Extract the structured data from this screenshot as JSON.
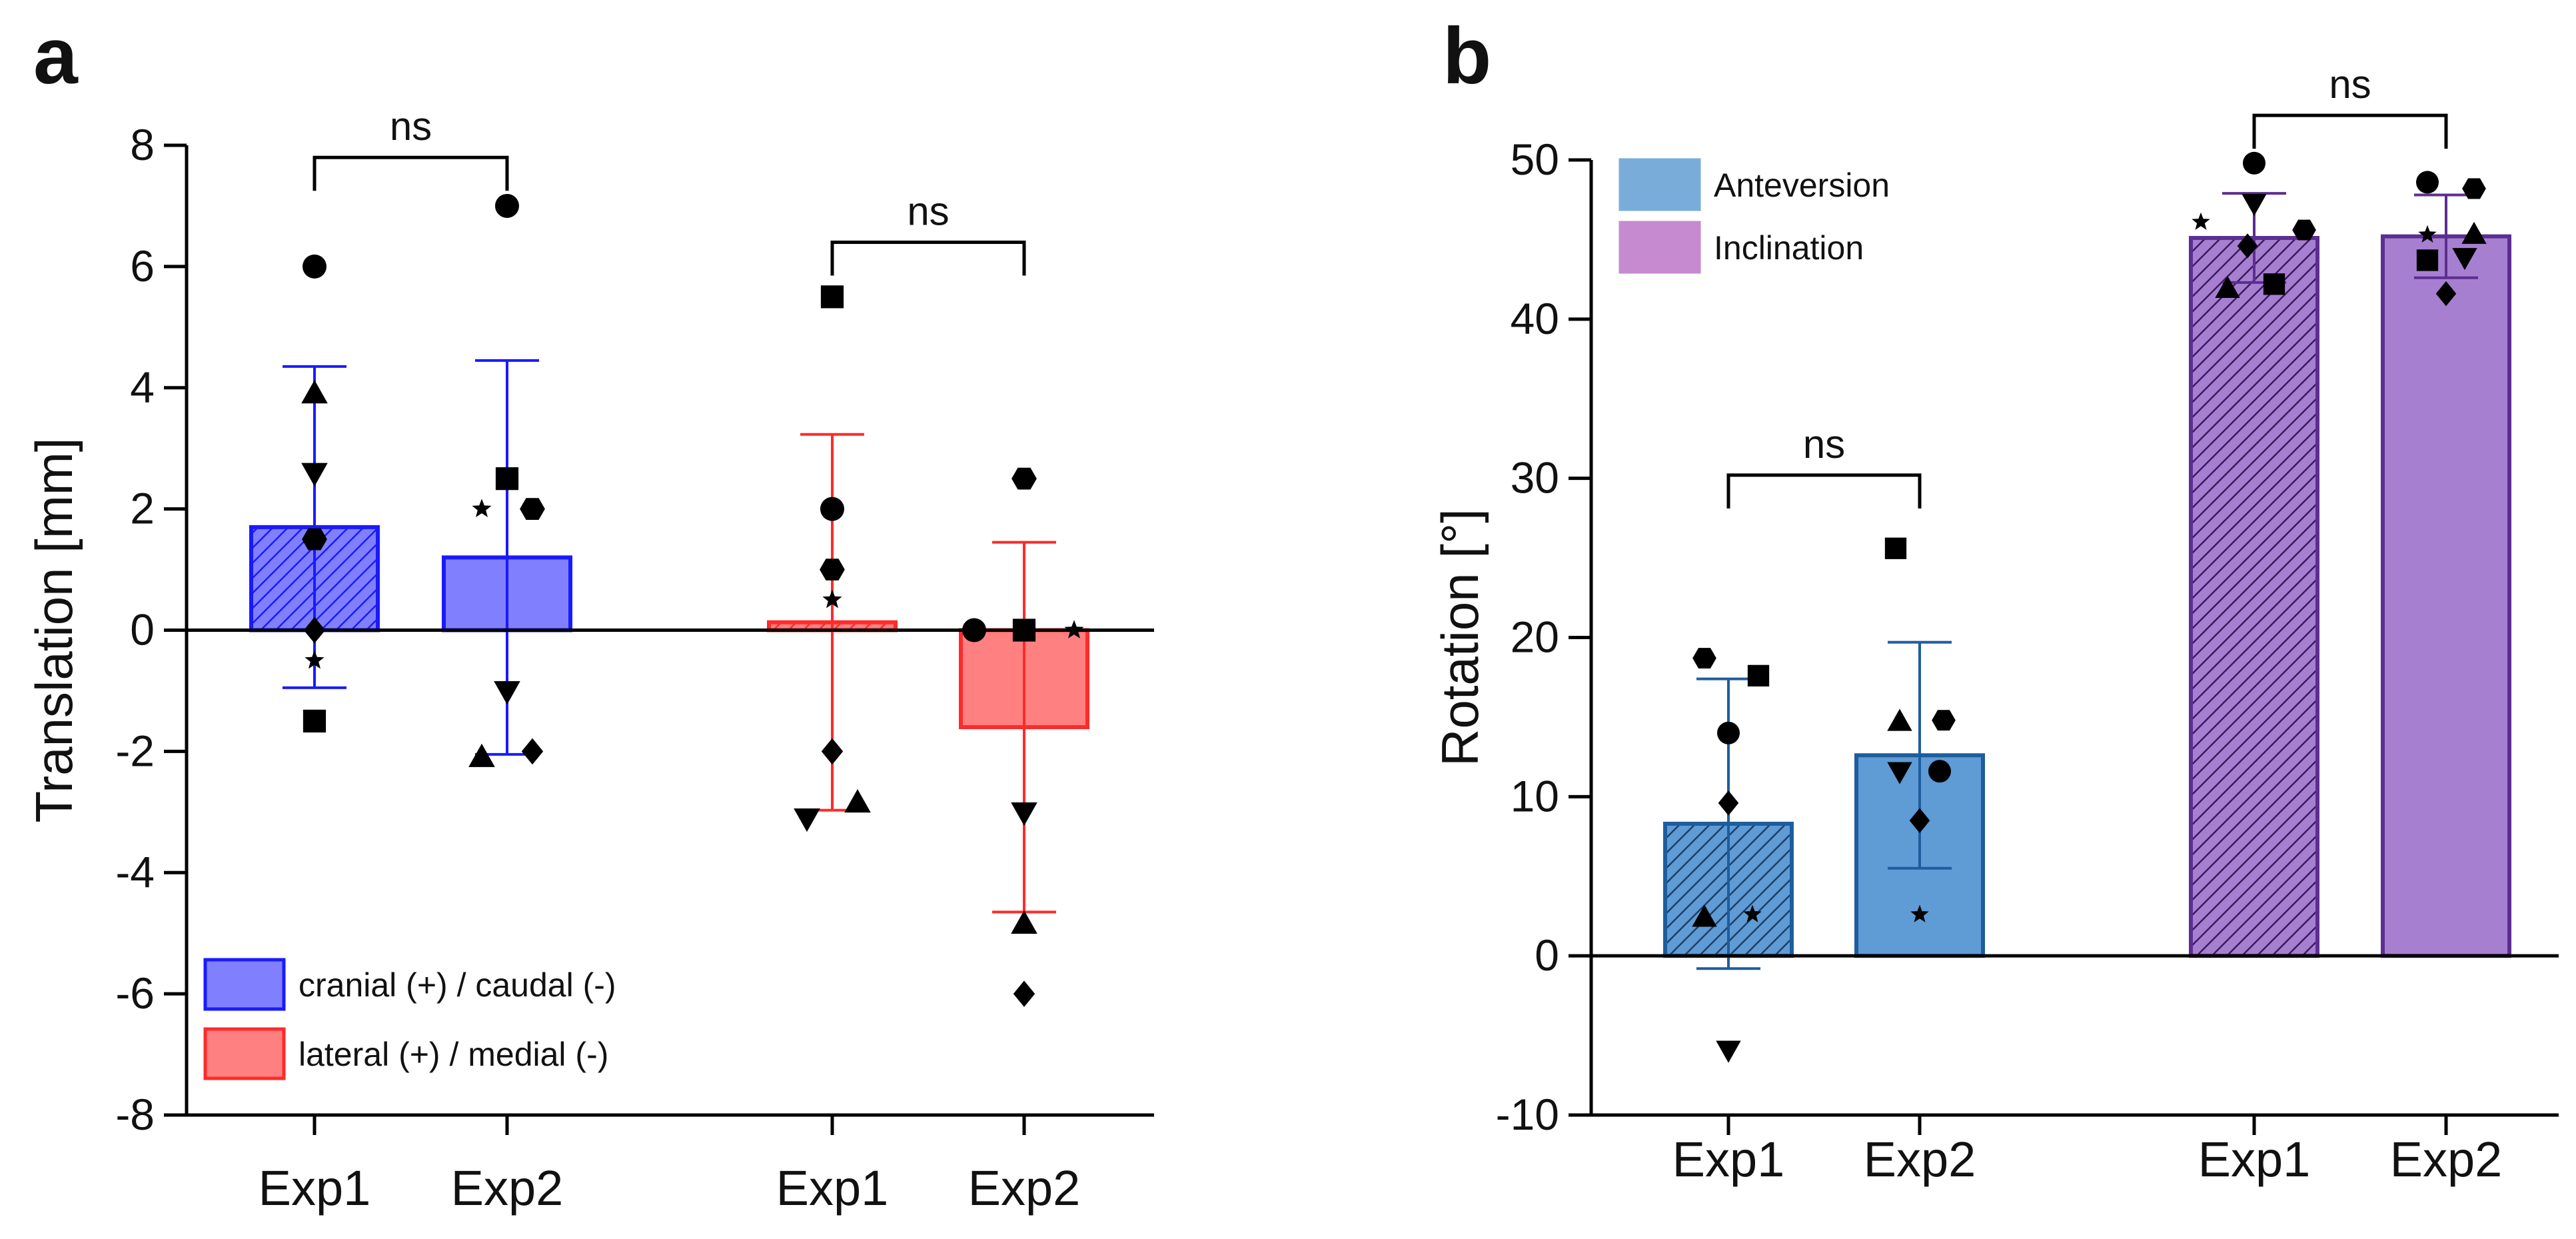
{
  "panels": [
    {
      "letter": "a"
    },
    {
      "letter": "b"
    }
  ],
  "chart_data": [
    {
      "type": "bar",
      "panel": "a",
      "ylabel": "Translation [mm]",
      "ylim": [
        -8,
        8
      ],
      "yticks": [
        8,
        6,
        4,
        2,
        0,
        -2,
        -4,
        -6,
        -8
      ],
      "ytick_labels": [
        "8",
        "6",
        "4",
        "2",
        "0",
        "-2",
        "-4",
        "-6",
        "-8"
      ],
      "categories": [
        "Exp1",
        "Exp2",
        "Exp1",
        "Exp2"
      ],
      "legend": {
        "placement": "bottom-left",
        "entries": [
          {
            "label": "cranial (+) / caudal (-)",
            "color": "#8080ff",
            "edge": "#1a1aff"
          },
          {
            "label": "lateral (+) / medial (-)",
            "color": "#ff8080",
            "edge": "#ff2a2a"
          }
        ]
      },
      "bars": [
        {
          "category": "Exp1",
          "value": 1.7,
          "error": 2.65,
          "fill": "#8080ff",
          "edge": "#1a1aff",
          "hatched": true,
          "points": [
            {
              "shape": "circle",
              "y": 6.0
            },
            {
              "shape": "triangle-up",
              "y": 3.9
            },
            {
              "shape": "triangle-down",
              "y": 2.6
            },
            {
              "shape": "hexagon",
              "y": 1.5
            },
            {
              "shape": "diamond",
              "y": 0.0
            },
            {
              "shape": "star",
              "y": -0.5
            },
            {
              "shape": "square",
              "y": -1.5
            }
          ]
        },
        {
          "category": "Exp2",
          "value": 1.2,
          "error": 3.25,
          "fill": "#8080ff",
          "edge": "#1a1aff",
          "hatched": false,
          "points": [
            {
              "shape": "circle",
              "y": 7.0
            },
            {
              "shape": "square",
              "y": 2.5
            },
            {
              "shape": "star",
              "y": 2.0
            },
            {
              "shape": "hexagon",
              "y": 2.0
            },
            {
              "shape": "triangle-down",
              "y": -1.0
            },
            {
              "shape": "triangle-up",
              "y": -2.1
            },
            {
              "shape": "diamond",
              "y": -2.0
            }
          ]
        },
        {
          "category": "Exp1",
          "value": 0.13,
          "error": 3.1,
          "fill": "#ff8080",
          "edge": "#ff2a2a",
          "hatched": true,
          "points": [
            {
              "shape": "square",
              "y": 5.5
            },
            {
              "shape": "circle",
              "y": 2.0
            },
            {
              "shape": "hexagon",
              "y": 1.0
            },
            {
              "shape": "star",
              "y": 0.5
            },
            {
              "shape": "diamond",
              "y": -2.0
            },
            {
              "shape": "triangle-down",
              "y": -3.1
            },
            {
              "shape": "triangle-up",
              "y": -2.85
            }
          ]
        },
        {
          "category": "Exp2",
          "value": -1.6,
          "error": 3.05,
          "fill": "#ff8080",
          "edge": "#ff2a2a",
          "hatched": false,
          "points": [
            {
              "shape": "hexagon",
              "y": 2.5
            },
            {
              "shape": "circle",
              "y": 0.0
            },
            {
              "shape": "square",
              "y": 0.0
            },
            {
              "shape": "star",
              "y": 0.0
            },
            {
              "shape": "triangle-down",
              "y": -3.0
            },
            {
              "shape": "triangle-up",
              "y": -4.85
            },
            {
              "shape": "diamond",
              "y": -6.0
            }
          ]
        }
      ],
      "comparisons": [
        {
          "from": 0,
          "to": 1,
          "label": "ns",
          "y": 7.8
        },
        {
          "from": 2,
          "to": 3,
          "label": "ns",
          "y": 6.4
        }
      ]
    },
    {
      "type": "bar",
      "panel": "b",
      "ylabel": "Rotation [°]",
      "ylim": [
        -10,
        50
      ],
      "yticks": [
        50,
        40,
        30,
        20,
        10,
        0,
        -10
      ],
      "ytick_labels": [
        "50",
        "40",
        "30",
        "20",
        "10",
        "0",
        "-10"
      ],
      "categories": [
        "Exp1",
        "Exp2",
        "Exp1",
        "Exp2"
      ],
      "legend": {
        "placement": "top-left",
        "entries": [
          {
            "label": "Anteversion",
            "color": "#7aacd9",
            "edge": "#7aacd9"
          },
          {
            "label": "Inclination",
            "color": "#c58ad0",
            "edge": "#c58ad0"
          }
        ]
      },
      "bars": [
        {
          "category": "Exp1",
          "value": 8.3,
          "error": 9.1,
          "fill": "#5f9bd5",
          "edge": "#1d5d9e",
          "hatched": true,
          "points": [
            {
              "shape": "hexagon",
              "y": 18.7
            },
            {
              "shape": "square",
              "y": 17.6
            },
            {
              "shape": "circle",
              "y": 14.0
            },
            {
              "shape": "diamond",
              "y": 9.6
            },
            {
              "shape": "triangle-up",
              "y": 2.4
            },
            {
              "shape": "star",
              "y": 2.6
            },
            {
              "shape": "triangle-down",
              "y": -5.9
            }
          ]
        },
        {
          "category": "Exp2",
          "value": 12.6,
          "error": 7.1,
          "fill": "#5f9bd5",
          "edge": "#1d5d9e",
          "hatched": false,
          "points": [
            {
              "shape": "square",
              "y": 25.6
            },
            {
              "shape": "triangle-up",
              "y": 14.7
            },
            {
              "shape": "hexagon",
              "y": 14.8
            },
            {
              "shape": "triangle-down",
              "y": 11.6
            },
            {
              "shape": "circle",
              "y": 11.6
            },
            {
              "shape": "diamond",
              "y": 8.5
            },
            {
              "shape": "star",
              "y": 2.6
            }
          ]
        },
        {
          "category": "Exp1",
          "value": 45.1,
          "error": 2.8,
          "fill": "#a77fd1",
          "edge": "#5c2e91",
          "hatched": true,
          "points": [
            {
              "shape": "circle",
              "y": 49.8
            },
            {
              "shape": "triangle-down",
              "y": 47.3
            },
            {
              "shape": "star",
              "y": 46.1
            },
            {
              "shape": "hexagon",
              "y": 45.6
            },
            {
              "shape": "diamond",
              "y": 44.6
            },
            {
              "shape": "triangle-up",
              "y": 41.9
            },
            {
              "shape": "square",
              "y": 42.2
            }
          ]
        },
        {
          "category": "Exp2",
          "value": 45.2,
          "error": 2.6,
          "fill": "#a77fd1",
          "edge": "#5c2e91",
          "hatched": false,
          "points": [
            {
              "shape": "circle",
              "y": 48.6
            },
            {
              "shape": "hexagon",
              "y": 48.2
            },
            {
              "shape": "star",
              "y": 45.3
            },
            {
              "shape": "triangle-up",
              "y": 45.3
            },
            {
              "shape": "square",
              "y": 43.7
            },
            {
              "shape": "triangle-down",
              "y": 43.9
            },
            {
              "shape": "diamond",
              "y": 41.6
            }
          ]
        }
      ],
      "comparisons": [
        {
          "from": 0,
          "to": 1,
          "label": "ns",
          "y": 30.2
        },
        {
          "from": 2,
          "to": 3,
          "label": "ns",
          "y": 52.8
        }
      ]
    }
  ]
}
